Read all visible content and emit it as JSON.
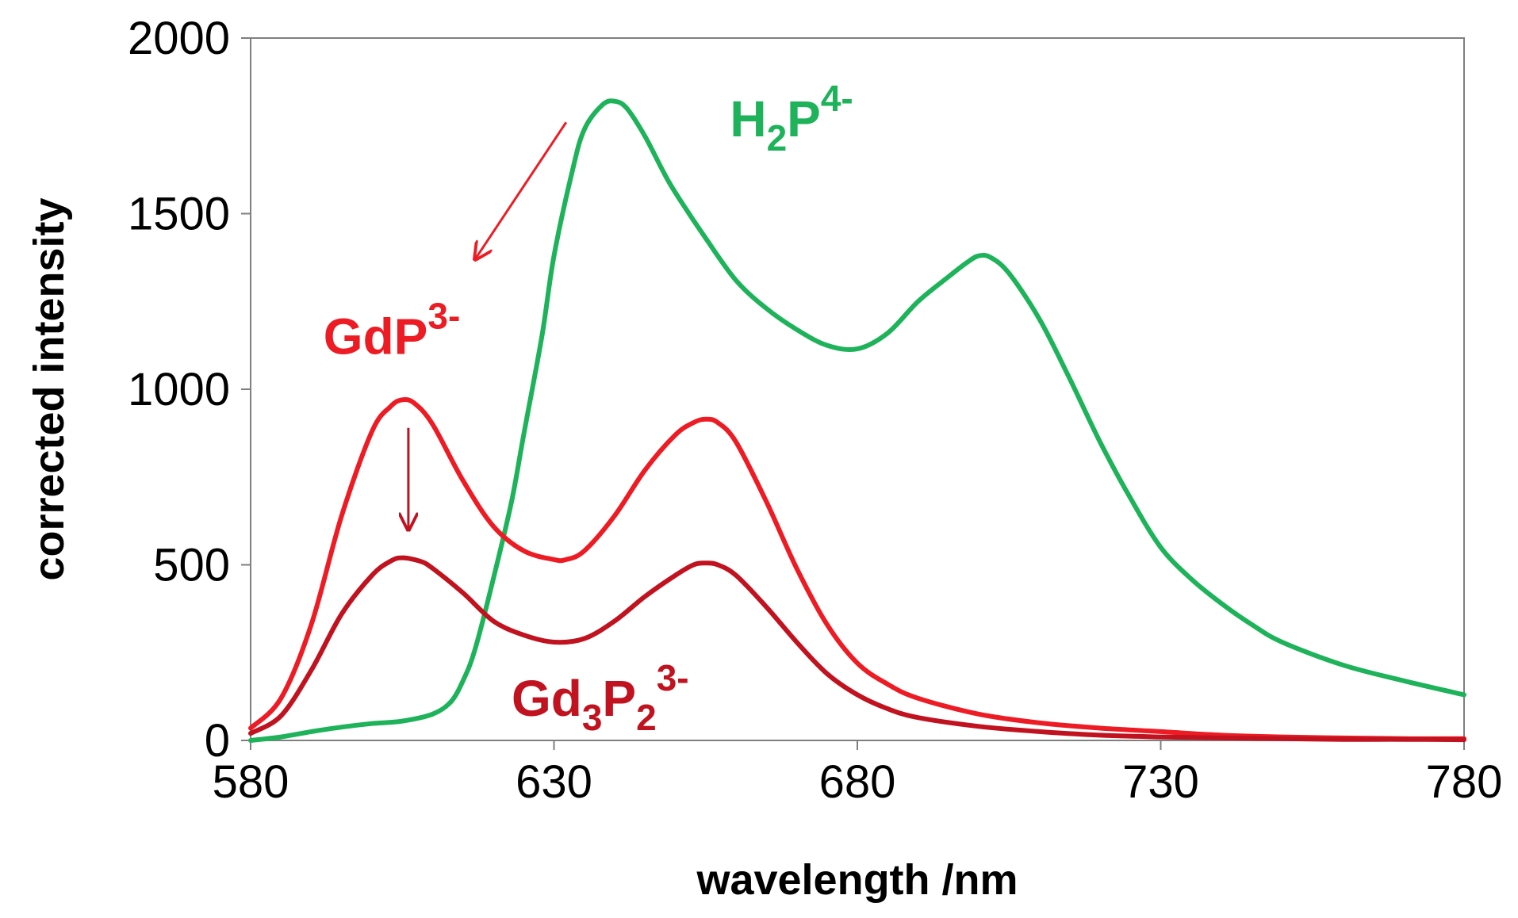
{
  "chart_data": {
    "type": "line",
    "title": "",
    "xlabel": "wavelength /nm",
    "ylabel": "corrected intensity",
    "xlim": [
      580,
      780
    ],
    "ylim": [
      0,
      2000
    ],
    "x_ticks": [
      580,
      630,
      680,
      730,
      780
    ],
    "y_ticks": [
      0,
      500,
      1000,
      1500,
      2000
    ],
    "grid": false,
    "legend": "none",
    "series": [
      {
        "color": "#1eb35a",
        "x": [
          580,
          585,
          590,
          595,
          600,
          605,
          610,
          613,
          615,
          617,
          620,
          623,
          625,
          628,
          630,
          633,
          635,
          638,
          640,
          642,
          645,
          648,
          650,
          655,
          660,
          665,
          670,
          675,
          680,
          685,
          690,
          695,
          698,
          700,
          702,
          705,
          710,
          715,
          720,
          725,
          730,
          735,
          740,
          745,
          750,
          760,
          770,
          780
        ],
        "y": [
          0,
          10,
          25,
          38,
          48,
          55,
          75,
          110,
          170,
          260,
          460,
          680,
          870,
          1150,
          1380,
          1620,
          1740,
          1810,
          1820,
          1800,
          1720,
          1620,
          1560,
          1430,
          1310,
          1230,
          1170,
          1125,
          1115,
          1160,
          1250,
          1320,
          1360,
          1380,
          1375,
          1330,
          1200,
          1030,
          850,
          690,
          550,
          460,
          390,
          330,
          280,
          215,
          170,
          130
        ]
      },
      {
        "color": "#ed1c24",
        "x": [
          580,
          585,
          590,
          595,
          600,
          603,
          605,
          607,
          610,
          615,
          620,
          625,
          630,
          632,
          635,
          640,
          645,
          650,
          653,
          655,
          657,
          660,
          665,
          670,
          675,
          680,
          685,
          690,
          700,
          710,
          720,
          730,
          740,
          750,
          760,
          770,
          780
        ],
        "y": [
          35,
          120,
          330,
          640,
          880,
          950,
          970,
          960,
          900,
          740,
          610,
          540,
          515,
          515,
          540,
          640,
          770,
          870,
          905,
          915,
          905,
          850,
          680,
          490,
          330,
          220,
          160,
          120,
          75,
          50,
          35,
          25,
          15,
          10,
          7,
          5,
          5
        ]
      },
      {
        "color": "#c1121f",
        "x": [
          580,
          585,
          590,
          595,
          600,
          603,
          605,
          608,
          610,
          615,
          620,
          625,
          630,
          635,
          640,
          645,
          650,
          653,
          655,
          657,
          660,
          665,
          670,
          675,
          680,
          685,
          690,
          700,
          710,
          720,
          730,
          740,
          750,
          760,
          770,
          780
        ],
        "y": [
          20,
          70,
          200,
          360,
          470,
          510,
          520,
          510,
          490,
          420,
          340,
          300,
          280,
          290,
          340,
          410,
          470,
          500,
          505,
          500,
          470,
          380,
          280,
          190,
          130,
          90,
          65,
          40,
          25,
          15,
          10,
          7,
          5,
          3,
          3,
          2
        ]
      }
    ],
    "annotations": [
      {
        "base": "H",
        "sub": "2",
        "base2": "P",
        "sup": "4-",
        "color": "#1eb35a",
        "x": 659,
        "y": 1720
      },
      {
        "base": "GdP",
        "sup": "3-",
        "color": "#ed1c24",
        "x": 592,
        "y": 1100
      },
      {
        "base": "Gd",
        "sub": "3",
        "base2": "P",
        "sub2": "2",
        "sup": "3-",
        "color": "#c1121f",
        "x": 623,
        "y": 70
      }
    ],
    "arrows": [
      {
        "color": "#ed1c24",
        "from": [
          632,
          1760
        ],
        "to": [
          617,
          1370
        ]
      },
      {
        "color": "#c1121f",
        "from": [
          606,
          890
        ],
        "to": [
          606,
          600
        ]
      }
    ]
  }
}
